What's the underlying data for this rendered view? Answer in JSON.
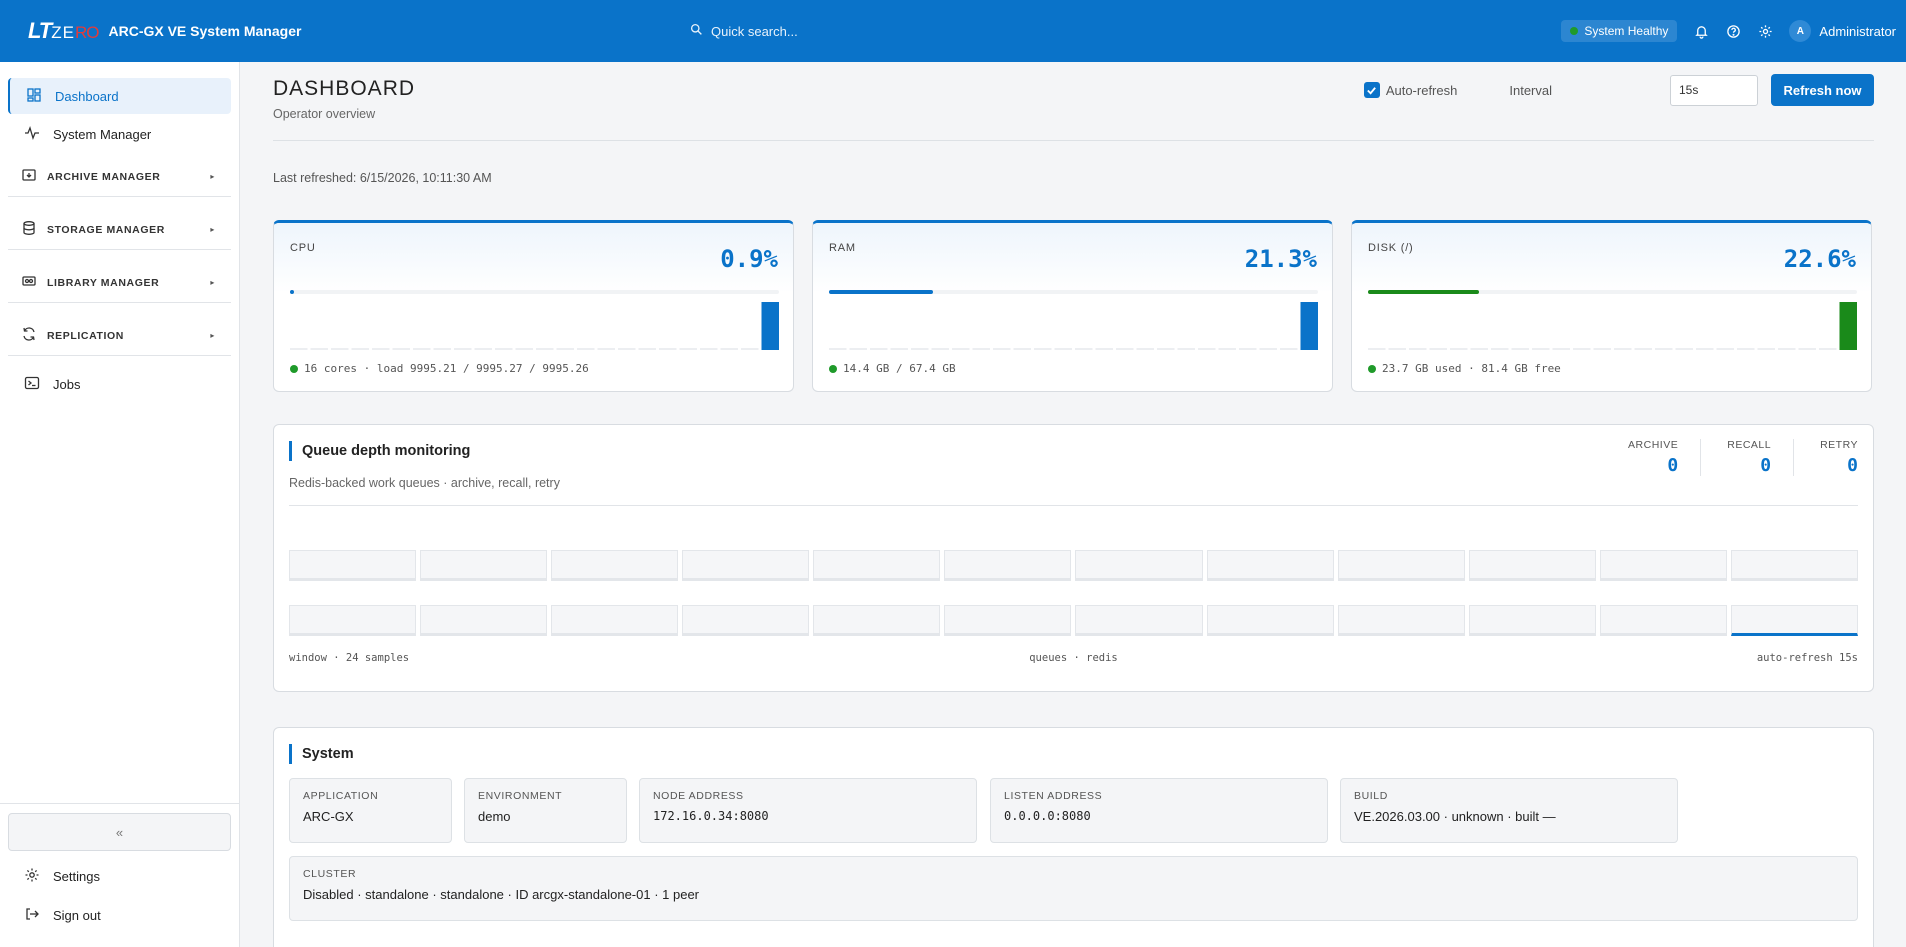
{
  "header": {
    "logo_lt": "LT",
    "logo_ze": "ZE",
    "logo_ro": "RO",
    "app_title": "ARC-GX VE System Manager",
    "search_placeholder": "Quick search...",
    "health_status": "System Healthy",
    "user_initial": "A",
    "user_name": "Administrator"
  },
  "sidebar": {
    "items": [
      {
        "label": "Dashboard",
        "icon": "dashboard-icon",
        "active": true
      },
      {
        "label": "System Manager",
        "icon": "activity-icon",
        "active": false
      }
    ],
    "groups": [
      {
        "label": "ARCHIVE MANAGER",
        "icon": "archive-icon"
      },
      {
        "label": "STORAGE MANAGER",
        "icon": "database-icon"
      },
      {
        "label": "LIBRARY MANAGER",
        "icon": "library-icon"
      },
      {
        "label": "REPLICATION",
        "icon": "refresh-icon"
      }
    ],
    "jobs_label": "Jobs",
    "collapse_label": "«",
    "settings_label": "Settings",
    "signout_label": "Sign out"
  },
  "page": {
    "title": "DASHBOARD",
    "subtitle": "Operator overview",
    "auto_refresh_label": "Auto-refresh",
    "auto_refresh_checked": true,
    "interval_label": "Interval",
    "interval_value": "15s",
    "refresh_button": "Refresh now",
    "last_refreshed": "Last refreshed: 6/15/2026, 10:11:30 AM"
  },
  "metrics": {
    "cpu": {
      "label": "CPU",
      "value": "0.9%",
      "fraction": 0.009,
      "color": "#0a73c9",
      "footer": "16 cores · load 9995.21 / 9995.27 / 9995.26"
    },
    "ram": {
      "label": "RAM",
      "value": "21.3%",
      "fraction": 0.213,
      "color": "#0a73c9",
      "footer": "14.4 GB / 67.4 GB"
    },
    "disk": {
      "label": "DISK (/)",
      "value": "22.6%",
      "fraction": 0.226,
      "color": "#1a8a1a",
      "footer": "23.7 GB used · 81.4 GB free"
    }
  },
  "queue": {
    "title": "Queue depth monitoring",
    "subtitle": "Redis-backed work queues · archive, recall, retry",
    "stats": [
      {
        "label": "ARCHIVE",
        "value": "0"
      },
      {
        "label": "RECALL",
        "value": "0"
      },
      {
        "label": "RETRY",
        "value": "0"
      }
    ],
    "footer_left": "window · 24 samples",
    "footer_center": "queues · redis",
    "footer_right": "auto-refresh 15s"
  },
  "system": {
    "title": "System",
    "application": {
      "label": "APPLICATION",
      "value": "ARC-GX"
    },
    "environment": {
      "label": "ENVIRONMENT",
      "value": "demo"
    },
    "node_address": {
      "label": "NODE ADDRESS",
      "value": "172.16.0.34:8080"
    },
    "listen_address": {
      "label": "LISTEN ADDRESS",
      "value": "0.0.0.0:8080"
    },
    "build": {
      "label": "BUILD",
      "value": "VE.2026.03.00 · unknown · built —"
    },
    "cluster": {
      "label": "CLUSTER",
      "value": "Disabled · standalone · standalone · ID arcgx-standalone-01 · 1 peer"
    }
  }
}
